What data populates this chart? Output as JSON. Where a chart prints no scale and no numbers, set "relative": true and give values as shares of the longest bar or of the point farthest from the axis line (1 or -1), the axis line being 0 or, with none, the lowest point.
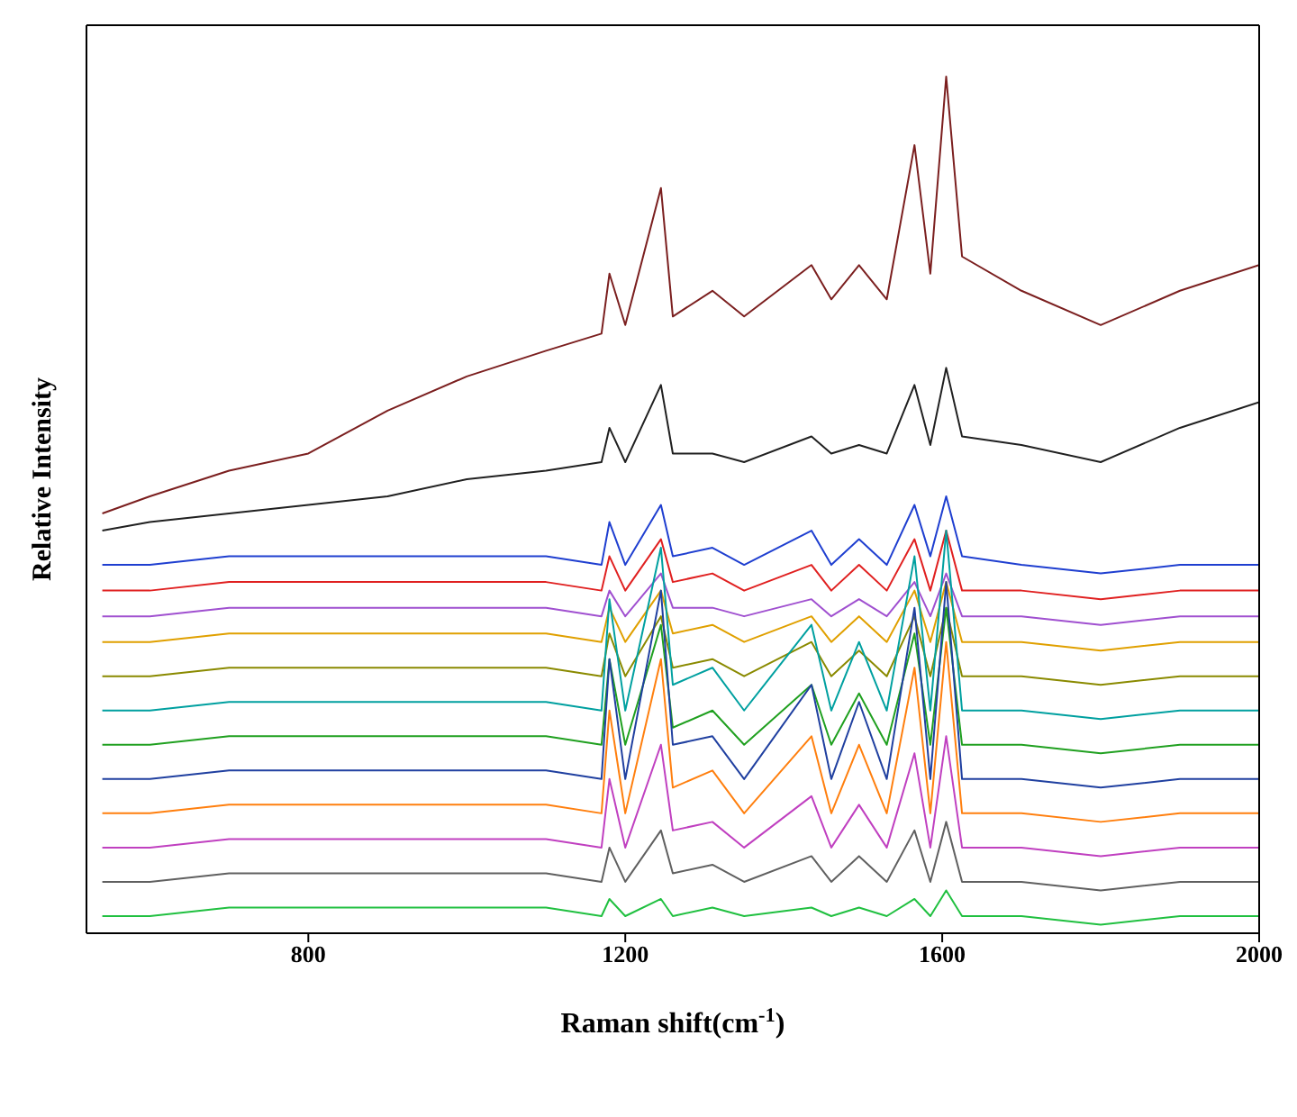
{
  "chart_data": {
    "type": "line",
    "relative": true,
    "xlabel": "Raman shift(cm$^{-1}$)",
    "ylabel": "Relative Intensity",
    "xlim": [
      520,
      2000
    ],
    "xticks": [
      800,
      1200,
      1600,
      2000
    ],
    "grid": false,
    "legend": false,
    "marker": "none",
    "line_style": "solid",
    "x": [
      540,
      600,
      700,
      800,
      900,
      1000,
      1100,
      1170,
      1180,
      1200,
      1245,
      1260,
      1310,
      1350,
      1435,
      1460,
      1495,
      1530,
      1565,
      1585,
      1605,
      1625,
      1700,
      1800,
      1900,
      2000
    ],
    "series": [
      {
        "color": "#7b1f1f",
        "values": [
          0.49,
          0.51,
          0.54,
          0.56,
          0.61,
          0.65,
          0.68,
          0.7,
          0.77,
          0.71,
          0.87,
          0.72,
          0.75,
          0.72,
          0.78,
          0.74,
          0.78,
          0.74,
          0.92,
          0.77,
          1.0,
          0.79,
          0.75,
          0.71,
          0.75,
          0.78
        ]
      },
      {
        "color": "#202020",
        "values": [
          0.47,
          0.48,
          0.49,
          0.5,
          0.51,
          0.53,
          0.54,
          0.55,
          0.59,
          0.55,
          0.64,
          0.56,
          0.56,
          0.55,
          0.58,
          0.56,
          0.57,
          0.56,
          0.64,
          0.57,
          0.66,
          0.58,
          0.57,
          0.55,
          0.59,
          0.62
        ]
      },
      {
        "color": "#1f3fd0",
        "values": [
          0.43,
          0.43,
          0.44,
          0.44,
          0.44,
          0.44,
          0.44,
          0.43,
          0.48,
          0.43,
          0.5,
          0.44,
          0.45,
          0.43,
          0.47,
          0.43,
          0.46,
          0.43,
          0.5,
          0.44,
          0.51,
          0.44,
          0.43,
          0.42,
          0.43,
          0.43
        ]
      },
      {
        "color": "#e02020",
        "values": [
          0.4,
          0.4,
          0.41,
          0.41,
          0.41,
          0.41,
          0.41,
          0.4,
          0.44,
          0.4,
          0.46,
          0.41,
          0.42,
          0.4,
          0.43,
          0.4,
          0.43,
          0.4,
          0.46,
          0.4,
          0.47,
          0.4,
          0.4,
          0.39,
          0.4,
          0.4
        ]
      },
      {
        "color": "#a050d0",
        "values": [
          0.37,
          0.37,
          0.38,
          0.38,
          0.38,
          0.38,
          0.38,
          0.37,
          0.4,
          0.37,
          0.42,
          0.38,
          0.38,
          0.37,
          0.39,
          0.37,
          0.39,
          0.37,
          0.41,
          0.37,
          0.42,
          0.37,
          0.37,
          0.36,
          0.37,
          0.37
        ]
      },
      {
        "color": "#e0a000",
        "values": [
          0.34,
          0.34,
          0.35,
          0.35,
          0.35,
          0.35,
          0.35,
          0.34,
          0.38,
          0.34,
          0.4,
          0.35,
          0.36,
          0.34,
          0.37,
          0.34,
          0.37,
          0.34,
          0.4,
          0.34,
          0.41,
          0.34,
          0.34,
          0.33,
          0.34,
          0.34
        ]
      },
      {
        "color": "#8a8a00",
        "values": [
          0.3,
          0.3,
          0.31,
          0.31,
          0.31,
          0.31,
          0.31,
          0.3,
          0.35,
          0.3,
          0.37,
          0.31,
          0.32,
          0.3,
          0.34,
          0.3,
          0.33,
          0.3,
          0.37,
          0.3,
          0.38,
          0.3,
          0.3,
          0.29,
          0.3,
          0.3
        ]
      },
      {
        "color": "#00a0a0",
        "values": [
          0.26,
          0.26,
          0.27,
          0.27,
          0.27,
          0.27,
          0.27,
          0.26,
          0.39,
          0.26,
          0.45,
          0.29,
          0.31,
          0.26,
          0.36,
          0.26,
          0.34,
          0.26,
          0.44,
          0.26,
          0.47,
          0.26,
          0.26,
          0.25,
          0.26,
          0.26
        ]
      },
      {
        "color": "#20a020",
        "values": [
          0.22,
          0.22,
          0.23,
          0.23,
          0.23,
          0.23,
          0.23,
          0.22,
          0.32,
          0.22,
          0.36,
          0.24,
          0.26,
          0.22,
          0.29,
          0.22,
          0.28,
          0.22,
          0.35,
          0.22,
          0.38,
          0.22,
          0.22,
          0.21,
          0.22,
          0.22
        ]
      },
      {
        "color": "#2040a0",
        "values": [
          0.18,
          0.18,
          0.19,
          0.19,
          0.19,
          0.19,
          0.19,
          0.18,
          0.32,
          0.18,
          0.4,
          0.22,
          0.23,
          0.18,
          0.29,
          0.18,
          0.27,
          0.18,
          0.38,
          0.18,
          0.41,
          0.18,
          0.18,
          0.17,
          0.18,
          0.18
        ]
      },
      {
        "color": "#ff7f0e",
        "values": [
          0.14,
          0.14,
          0.15,
          0.15,
          0.15,
          0.15,
          0.15,
          0.14,
          0.26,
          0.14,
          0.32,
          0.17,
          0.19,
          0.14,
          0.23,
          0.14,
          0.22,
          0.14,
          0.31,
          0.14,
          0.34,
          0.14,
          0.14,
          0.13,
          0.14,
          0.14
        ]
      },
      {
        "color": "#c040c0",
        "values": [
          0.1,
          0.1,
          0.11,
          0.11,
          0.11,
          0.11,
          0.11,
          0.1,
          0.18,
          0.1,
          0.22,
          0.12,
          0.13,
          0.1,
          0.16,
          0.1,
          0.15,
          0.1,
          0.21,
          0.1,
          0.23,
          0.1,
          0.1,
          0.09,
          0.1,
          0.1
        ]
      },
      {
        "color": "#606060",
        "values": [
          0.06,
          0.06,
          0.07,
          0.07,
          0.07,
          0.07,
          0.07,
          0.06,
          0.1,
          0.06,
          0.12,
          0.07,
          0.08,
          0.06,
          0.09,
          0.06,
          0.09,
          0.06,
          0.12,
          0.06,
          0.13,
          0.06,
          0.06,
          0.05,
          0.06,
          0.06
        ]
      },
      {
        "color": "#20c040",
        "values": [
          0.02,
          0.02,
          0.03,
          0.03,
          0.03,
          0.03,
          0.03,
          0.02,
          0.04,
          0.02,
          0.04,
          0.02,
          0.03,
          0.02,
          0.03,
          0.02,
          0.03,
          0.02,
          0.04,
          0.02,
          0.05,
          0.02,
          0.02,
          0.01,
          0.02,
          0.02
        ]
      }
    ]
  }
}
